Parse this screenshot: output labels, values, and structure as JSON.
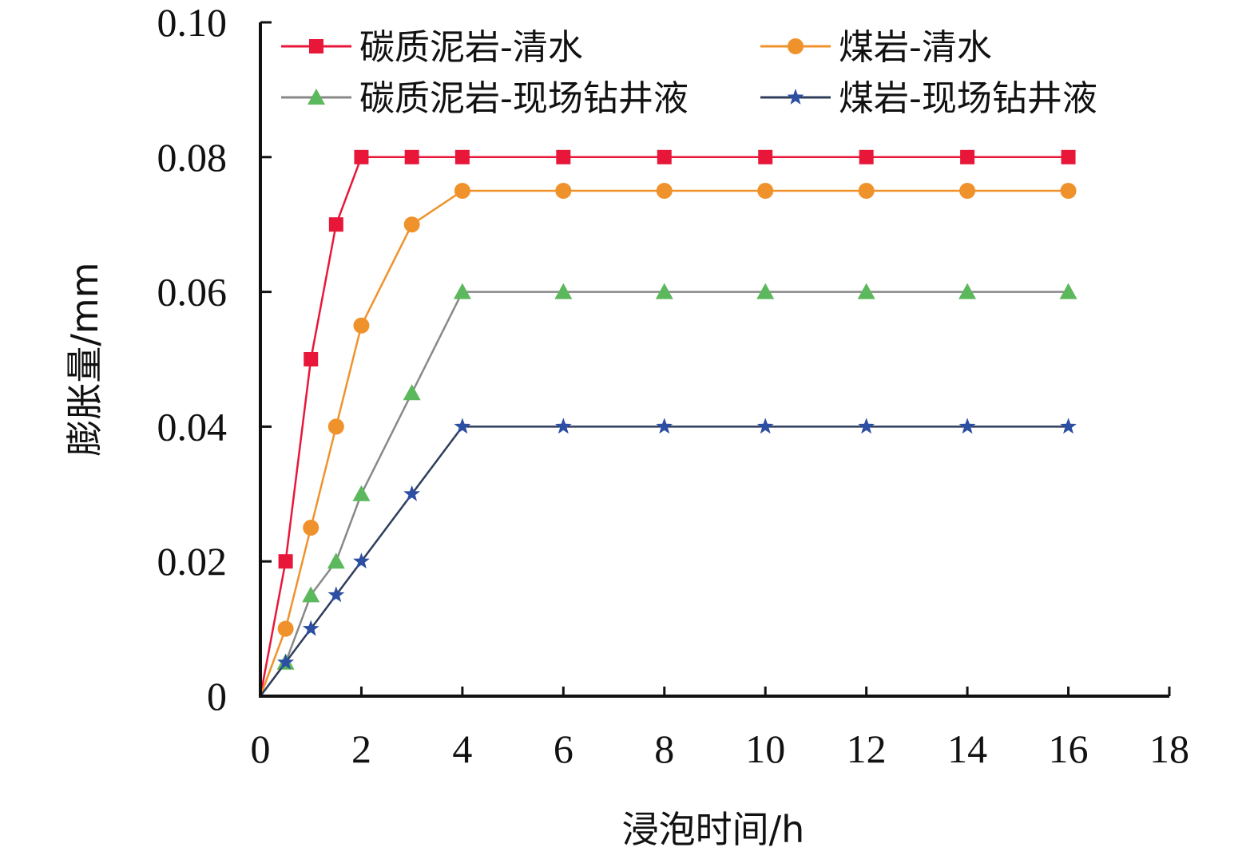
{
  "chart_data": {
    "type": "line",
    "xlabel": "浸泡时间/h",
    "ylabel": "膨胀量/mm",
    "xlim": [
      0,
      18
    ],
    "ylim": [
      0,
      0.1
    ],
    "x_ticks": [
      0,
      2,
      4,
      6,
      8,
      10,
      12,
      14,
      16,
      18
    ],
    "y_ticks": [
      "0",
      "0.02",
      "0.04",
      "0.06",
      "0.08",
      "0.10"
    ],
    "y_tick_values": [
      0,
      0.02,
      0.04,
      0.06,
      0.08,
      0.1
    ],
    "legend_position": "top",
    "grid": false,
    "series": [
      {
        "name": "碳质泥岩-清水",
        "color": "#e8173a",
        "marker": "square",
        "x": [
          0,
          0.5,
          1,
          1.5,
          2,
          3,
          4,
          6,
          8,
          10,
          12,
          14,
          16
        ],
        "y": [
          0,
          0.02,
          0.05,
          0.07,
          0.08,
          0.08,
          0.08,
          0.08,
          0.08,
          0.08,
          0.08,
          0.08,
          0.08
        ]
      },
      {
        "name": "煤岩-清水",
        "color": "#f0922c",
        "marker": "circle",
        "x": [
          0,
          0.5,
          1,
          1.5,
          2,
          3,
          4,
          6,
          8,
          10,
          12,
          14,
          16
        ],
        "y": [
          0,
          0.01,
          0.025,
          0.04,
          0.055,
          0.07,
          0.075,
          0.075,
          0.075,
          0.075,
          0.075,
          0.075,
          0.075
        ]
      },
      {
        "name": "碳质泥岩-现场钻井液",
        "color": "#5cb85c",
        "line_color": "#888888",
        "marker": "triangle",
        "x": [
          0,
          0.5,
          1,
          1.5,
          2,
          3,
          4,
          6,
          8,
          10,
          12,
          14,
          16
        ],
        "y": [
          0,
          0.005,
          0.015,
          0.02,
          0.03,
          0.045,
          0.06,
          0.06,
          0.06,
          0.06,
          0.06,
          0.06,
          0.06
        ]
      },
      {
        "name": "煤岩-现场钻井液",
        "color": "#2c4fa3",
        "line_color": "#2f3d5c",
        "marker": "star",
        "x": [
          0,
          0.5,
          1,
          1.5,
          2,
          3,
          4,
          6,
          8,
          10,
          12,
          14,
          16
        ],
        "y": [
          0,
          0.005,
          0.01,
          0.015,
          0.02,
          0.03,
          0.04,
          0.04,
          0.04,
          0.04,
          0.04,
          0.04,
          0.04
        ]
      }
    ]
  }
}
